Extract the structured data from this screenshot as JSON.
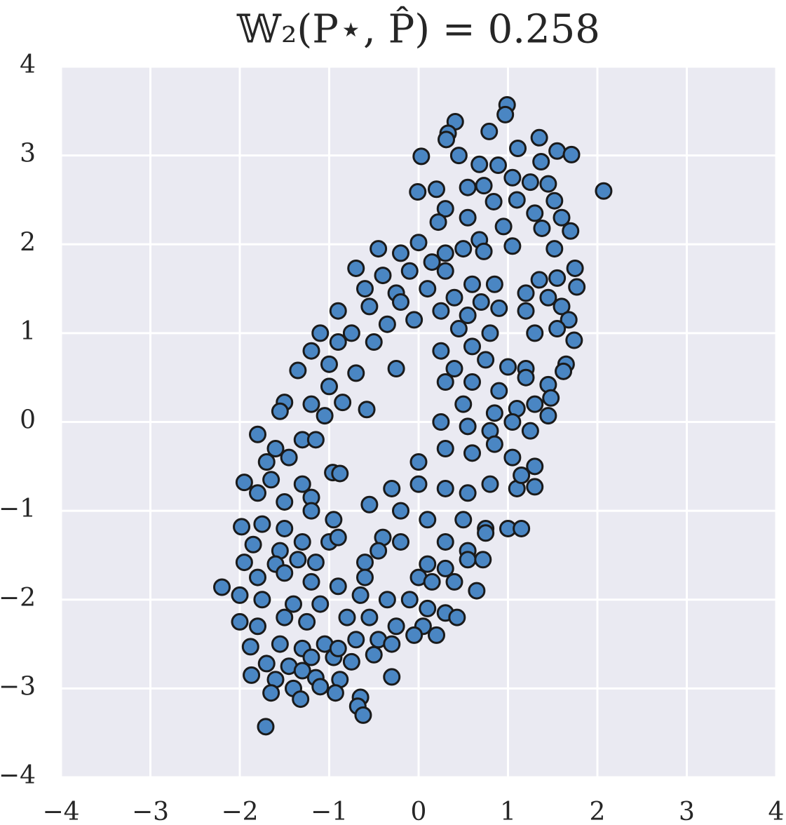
{
  "chart_data": {
    "type": "scatter",
    "title": "𝕎₂(P⋆, P̂) = 0.258",
    "color": "#4a86c3",
    "edgecolor": "#1a1a1a",
    "grid": true,
    "background": "#eaeaf2",
    "xlim": [
      -4,
      4
    ],
    "ylim": [
      -4,
      4
    ],
    "xticks": [
      {
        "value": -4,
        "label": "−4"
      },
      {
        "value": -3,
        "label": "−3"
      },
      {
        "value": -2,
        "label": "−2"
      },
      {
        "value": -1,
        "label": "−1"
      },
      0,
      1,
      2,
      3,
      4
    ],
    "yticks": [
      {
        "value": -4,
        "label": "−4"
      },
      {
        "value": -3,
        "label": "−3"
      },
      {
        "value": -2,
        "label": "−2"
      },
      {
        "value": -1,
        "label": "−1"
      },
      0,
      1,
      2,
      3,
      4
    ],
    "x": [
      0.99,
      0.97,
      0.41,
      0.33,
      0.31,
      0.79,
      1.35,
      1.55,
      1.71,
      1.11,
      0.03,
      0.45,
      0.68,
      0.89,
      1.37,
      2.07,
      -0.01,
      0.2,
      0.55,
      0.73,
      1.05,
      1.25,
      1.45,
      0.84,
      1.1,
      1.52,
      0.3,
      0.55,
      0.95,
      1.3,
      1.6,
      1.7,
      1.38,
      0.22,
      0.68,
      1.05,
      1.52,
      -0.45,
      -0.2,
      0.0,
      0.15,
      0.3,
      0.5,
      0.73,
      -0.7,
      -0.4,
      -0.1,
      0.3,
      0.6,
      0.85,
      1.75,
      1.55,
      1.35,
      1.77,
      -0.6,
      -0.25,
      0.1,
      0.4,
      0.7,
      1.2,
      1.45,
      -0.9,
      -0.55,
      -0.2,
      0.25,
      0.55,
      0.9,
      1.2,
      1.6,
      1.68,
      -1.1,
      -0.75,
      -0.35,
      -0.05,
      0.45,
      0.8,
      1.3,
      1.55,
      1.74,
      -1.2,
      -0.9,
      -0.5,
      0.25,
      0.6,
      -1.35,
      -1.0,
      -0.7,
      -0.25,
      0.4,
      0.75,
      1.0,
      1.2,
      1.65,
      1.62,
      -1.5,
      -1.55,
      -1.2,
      -1.0,
      -0.85,
      -1.05,
      -0.58,
      0.3,
      0.6,
      0.9,
      1.2,
      1.45,
      0.5,
      0.85,
      1.1,
      1.3,
      1.48,
      1.45,
      0.25,
      0.55,
      0.8,
      1.05,
      1.25,
      -1.8,
      -1.6,
      -1.3,
      -1.15,
      -1.45,
      -1.7,
      0.3,
      0.6,
      0.85,
      1.05,
      1.3,
      0.0,
      -1.95,
      -1.65,
      -1.3,
      -0.96,
      -0.88,
      -1.8,
      -1.5,
      -1.2,
      0.0,
      0.3,
      0.55,
      0.8,
      1.1,
      1.3,
      1.15,
      -0.3,
      -0.55,
      -1.98,
      -1.75,
      -1.5,
      -1.2,
      -0.95,
      -0.2,
      0.1,
      0.5,
      0.75,
      1.0,
      1.15,
      -1.85,
      -1.55,
      -1.3,
      -1.0,
      -0.9,
      -0.4,
      -0.2,
      0.3,
      0.55,
      0.75,
      -1.95,
      -1.6,
      -1.35,
      -1.15,
      -0.6,
      -0.45,
      0.1,
      0.3,
      0.55,
      0.72,
      -2.2,
      -1.8,
      -1.5,
      -1.2,
      -0.9,
      -0.6,
      0.0,
      0.15,
      0.4,
      0.65,
      -2.0,
      -1.75,
      -1.4,
      -1.1,
      -0.65,
      -0.35,
      -0.1,
      0.1,
      0.3,
      0.43,
      -2.0,
      -1.8,
      -1.5,
      -1.25,
      -0.8,
      -0.55,
      -0.25,
      0.05,
      0.2,
      -1.88,
      -1.55,
      -1.3,
      -1.05,
      -0.7,
      -0.45,
      -0.3,
      -0.05,
      -1.7,
      -1.45,
      -1.2,
      -0.95,
      -0.75,
      -0.5,
      -1.87,
      -1.6,
      -1.3,
      -1.15,
      -0.88,
      -0.3,
      -1.65,
      -1.4,
      -0.93,
      -0.65,
      -1.32,
      -0.68,
      -0.62,
      -1.71,
      -1.1,
      -0.9
    ],
    "y": [
      3.57,
      3.46,
      3.38,
      3.25,
      3.18,
      3.27,
      3.2,
      3.05,
      3.01,
      3.08,
      2.99,
      3.0,
      2.9,
      2.89,
      2.93,
      2.6,
      2.59,
      2.62,
      2.64,
      2.66,
      2.75,
      2.7,
      2.68,
      2.48,
      2.5,
      2.49,
      2.4,
      2.3,
      2.2,
      2.35,
      2.3,
      2.15,
      2.18,
      2.25,
      2.05,
      1.98,
      1.95,
      1.95,
      1.9,
      2.02,
      1.8,
      1.9,
      1.95,
      1.92,
      1.73,
      1.65,
      1.7,
      1.7,
      1.55,
      1.55,
      1.73,
      1.62,
      1.6,
      1.52,
      1.5,
      1.45,
      1.5,
      1.4,
      1.35,
      1.45,
      1.4,
      1.25,
      1.3,
      1.35,
      1.25,
      1.2,
      1.28,
      1.25,
      1.3,
      1.15,
      1.0,
      1.0,
      1.1,
      1.15,
      1.05,
      1.0,
      1.0,
      1.05,
      0.92,
      0.8,
      0.9,
      0.9,
      0.8,
      0.85,
      0.58,
      0.65,
      0.55,
      0.6,
      0.6,
      0.7,
      0.62,
      0.6,
      0.65,
      0.57,
      0.22,
      0.12,
      0.2,
      0.4,
      0.22,
      0.07,
      0.14,
      0.45,
      0.45,
      0.35,
      0.5,
      0.42,
      0.2,
      0.1,
      0.15,
      0.2,
      0.27,
      0.07,
      0.0,
      -0.05,
      -0.1,
      0.0,
      -0.1,
      -0.14,
      -0.3,
      -0.2,
      -0.2,
      -0.4,
      -0.45,
      -0.3,
      -0.35,
      -0.25,
      -0.4,
      -0.5,
      -0.45,
      -0.68,
      -0.65,
      -0.7,
      -0.57,
      -0.58,
      -0.8,
      -0.9,
      -0.85,
      -0.7,
      -0.75,
      -0.8,
      -0.7,
      -0.75,
      -0.73,
      -0.6,
      -0.75,
      -0.93,
      -1.18,
      -1.15,
      -1.2,
      -1.0,
      -1.1,
      -1.0,
      -1.1,
      -1.1,
      -1.2,
      -1.2,
      -1.2,
      -1.38,
      -1.45,
      -1.35,
      -1.35,
      -1.3,
      -1.3,
      -1.35,
      -1.35,
      -1.45,
      -1.25,
      -1.58,
      -1.6,
      -1.55,
      -1.58,
      -1.58,
      -1.45,
      -1.6,
      -1.65,
      -1.55,
      -1.55,
      -1.86,
      -1.75,
      -1.7,
      -1.8,
      -1.85,
      -1.75,
      -1.75,
      -1.8,
      -1.8,
      -1.9,
      -1.95,
      -2.0,
      -2.05,
      -2.05,
      -1.95,
      -2.0,
      -2.0,
      -2.1,
      -2.15,
      -2.2,
      -2.25,
      -2.3,
      -2.2,
      -2.25,
      -2.2,
      -2.2,
      -2.3,
      -2.3,
      -2.4,
      -2.53,
      -2.5,
      -2.55,
      -2.5,
      -2.45,
      -2.45,
      -2.5,
      -2.4,
      -2.72,
      -2.75,
      -2.65,
      -2.65,
      -2.7,
      -2.62,
      -2.85,
      -2.9,
      -2.8,
      -2.88,
      -2.9,
      -2.87,
      -3.05,
      -3.0,
      -3.05,
      -3.1,
      -3.12,
      -3.2,
      -3.3,
      -3.43,
      -2.98,
      -2.55
    ]
  }
}
